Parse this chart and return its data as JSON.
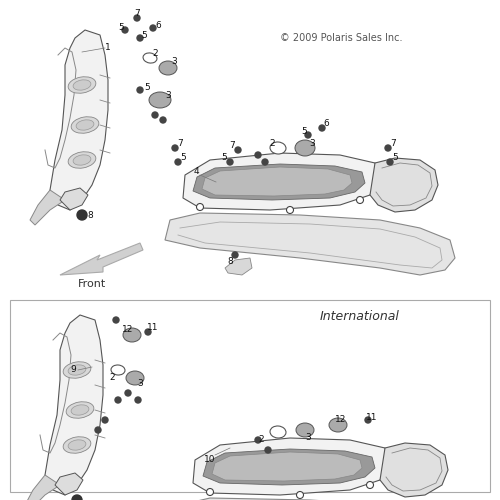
{
  "bg_color": "#ffffff",
  "copyright": "© 2009 Polaris Sales Inc.",
  "front_label": "Front",
  "font_size_num": 6.5,
  "font_size_copyright": 7,
  "font_size_front": 8,
  "font_size_intl": 9
}
